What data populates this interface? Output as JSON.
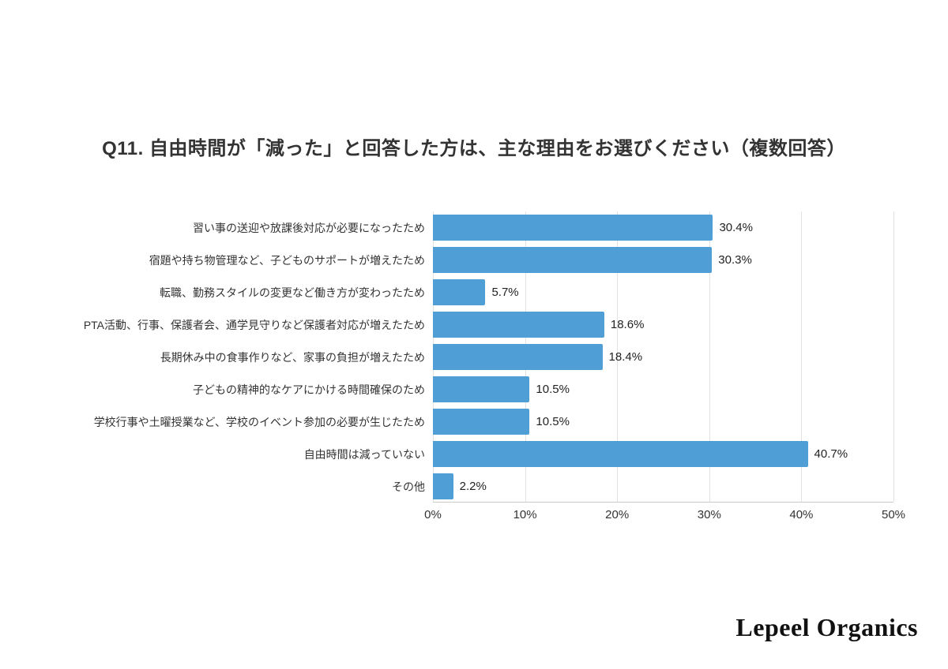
{
  "title": "Q11. 自由時間が「減った」と回答した方は、主な理由をお選びください（複数回答）",
  "brand": "Lepeel Organics",
  "chart_data": {
    "type": "bar",
    "orientation": "horizontal",
    "title": "Q11. 自由時間が「減った」と回答した方は、主な理由をお選びください（複数回答）",
    "categories": [
      "習い事の送迎や放課後対応が必要になったため",
      "宿題や持ち物管理など、子どものサポートが増えたため",
      "転職、勤務スタイルの変更など働き方が変わったため",
      "PTA活動、行事、保護者会、通学見守りなど保護者対応が増えたため",
      "長期休み中の食事作りなど、家事の負担が増えたため",
      "子どもの精神的なケアにかける時間確保のため",
      "学校行事や土曜授業など、学校のイベント参加の必要が生じたため",
      "自由時間は減っていない",
      "その他"
    ],
    "values": [
      30.4,
      30.3,
      5.7,
      18.6,
      18.4,
      10.5,
      10.5,
      40.7,
      2.2
    ],
    "value_labels": [
      "30.4%",
      "30.3%",
      "5.7%",
      "18.6%",
      "18.4%",
      "10.5%",
      "10.5%",
      "40.7%",
      "2.2%"
    ],
    "xlim": [
      0,
      50
    ],
    "x_ticks": [
      {
        "value": 0,
        "label": "0%"
      },
      {
        "value": 10,
        "label": "10%"
      },
      {
        "value": 20,
        "label": "20%"
      },
      {
        "value": 30,
        "label": "30%"
      },
      {
        "value": 40,
        "label": "40%"
      },
      {
        "value": 50,
        "label": "50%"
      }
    ],
    "bar_color": "#4f9fd6",
    "grid": true,
    "legend": false
  }
}
